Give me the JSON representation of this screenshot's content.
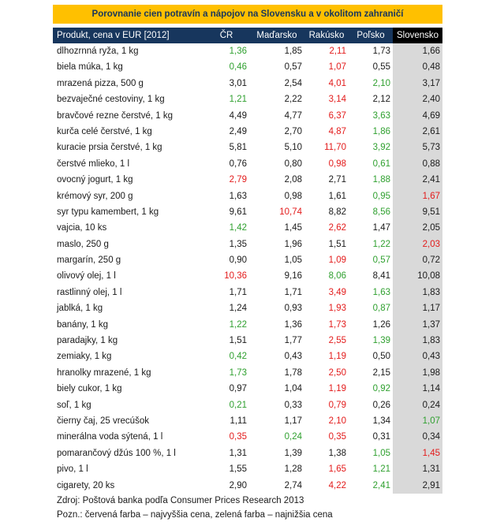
{
  "title": "Porovnanie cien potravín a nápojov na Slovensku a v okolitom zahraničí",
  "header": {
    "product": "Produkt, cena v EUR [2012]",
    "cz": "ČR",
    "hu": "Maďarsko",
    "at": "Rakúsko",
    "pl": "Poľsko",
    "sk": "Slovensko"
  },
  "colors": {
    "highest": "#e31b1b",
    "lowest": "#2fa02f",
    "title_bg": "#ffc000",
    "header_bg": "#17365d"
  },
  "rows": [
    {
      "name": "dlhozrnná ryža, 1 kg",
      "cz": "1,36",
      "hu": "1,85",
      "at": "2,11",
      "pl": "1,73",
      "sk": "1,66",
      "hi": "at",
      "lo": "cz"
    },
    {
      "name": "biela múka, 1 kg",
      "cz": "0,46",
      "hu": "0,57",
      "at": "1,07",
      "pl": "0,55",
      "sk": "0,48",
      "hi": "at",
      "lo": "cz"
    },
    {
      "name": "mrazená pizza, 500 g",
      "cz": "3,01",
      "hu": "2,54",
      "at": "4,01",
      "pl": "2,10",
      "sk": "3,17",
      "hi": "at",
      "lo": "pl"
    },
    {
      "name": "bezvaječné cestoviny, 1 kg",
      "cz": "1,21",
      "hu": "2,22",
      "at": "3,14",
      "pl": "2,12",
      "sk": "2,40",
      "hi": "at",
      "lo": "cz"
    },
    {
      "name": "bravčové rezne čerstvé, 1 kg",
      "cz": "4,49",
      "hu": "4,77",
      "at": "6,37",
      "pl": "3,63",
      "sk": "4,69",
      "hi": "at",
      "lo": "pl"
    },
    {
      "name": "kurča celé čerstvé, 1 kg",
      "cz": "2,49",
      "hu": "2,70",
      "at": "4,87",
      "pl": "1,86",
      "sk": "2,61",
      "hi": "at",
      "lo": "pl"
    },
    {
      "name": "kuracie prsia čerstvé, 1 kg",
      "cz": "5,81",
      "hu": "5,10",
      "at": "11,70",
      "pl": "3,92",
      "sk": "5,73",
      "hi": "at",
      "lo": "pl"
    },
    {
      "name": "čerstvé mlieko, 1 l",
      "cz": "0,76",
      "hu": "0,80",
      "at": "0,98",
      "pl": "0,61",
      "sk": "0,88",
      "hi": "at",
      "lo": "pl"
    },
    {
      "name": "ovocný jogurt, 1 kg",
      "cz": "2,79",
      "hu": "2,08",
      "at": "2,71",
      "pl": "1,88",
      "sk": "2,41",
      "hi": "cz",
      "lo": "pl"
    },
    {
      "name": "krémový syr, 200 g",
      "cz": "1,63",
      "hu": "0,98",
      "at": "1,61",
      "pl": "0,95",
      "sk": "1,67",
      "hi": "sk",
      "lo": "pl"
    },
    {
      "name": "syr typu kamembert, 1 kg",
      "cz": "9,61",
      "hu": "10,74",
      "at": "8,82",
      "pl": "8,56",
      "sk": "9,51",
      "hi": "hu",
      "lo": "pl"
    },
    {
      "name": "vajcia, 10 ks",
      "cz": "1,42",
      "hu": "1,45",
      "at": "2,62",
      "pl": "1,47",
      "sk": "2,05",
      "hi": "at",
      "lo": "cz"
    },
    {
      "name": "maslo, 250 g",
      "cz": "1,35",
      "hu": "1,96",
      "at": "1,51",
      "pl": "1,22",
      "sk": "2,03",
      "hi": "sk",
      "lo": "pl"
    },
    {
      "name": "margarín, 250 g",
      "cz": "0,90",
      "hu": "1,05",
      "at": "1,09",
      "pl": "0,57",
      "sk": "0,72",
      "hi": "at",
      "lo": "pl"
    },
    {
      "name": "olivový olej, 1 l",
      "cz": "10,36",
      "hu": "9,16",
      "at": "8,06",
      "pl": "8,41",
      "sk": "10,08",
      "hi": "cz",
      "lo": "at"
    },
    {
      "name": "rastlinný olej, 1 l",
      "cz": "1,71",
      "hu": "1,71",
      "at": "3,49",
      "pl": "1,63",
      "sk": "1,83",
      "hi": "at",
      "lo": "pl"
    },
    {
      "name": "jablká, 1 kg",
      "cz": "1,24",
      "hu": "0,93",
      "at": "1,93",
      "pl": "0,87",
      "sk": "1,17",
      "hi": "at",
      "lo": "pl"
    },
    {
      "name": "banány, 1 kg",
      "cz": "1,22",
      "hu": "1,36",
      "at": "1,73",
      "pl": "1,26",
      "sk": "1,37",
      "hi": "at",
      "lo": "cz"
    },
    {
      "name": "paradajky, 1 kg",
      "cz": "1,51",
      "hu": "1,77",
      "at": "2,55",
      "pl": "1,39",
      "sk": "1,83",
      "hi": "at",
      "lo": "pl"
    },
    {
      "name": "zemiaky, 1 kg",
      "cz": "0,42",
      "hu": "0,43",
      "at": "1,19",
      "pl": "0,50",
      "sk": "0,43",
      "hi": "at",
      "lo": "cz"
    },
    {
      "name": "hranolky mrazené, 1 kg",
      "cz": "1,73",
      "hu": "1,78",
      "at": "2,50",
      "pl": "2,15",
      "sk": "1,98",
      "hi": "at",
      "lo": "cz"
    },
    {
      "name": "biely cukor, 1 kg",
      "cz": "0,97",
      "hu": "1,04",
      "at": "1,19",
      "pl": "0,92",
      "sk": "1,14",
      "hi": "at",
      "lo": "pl"
    },
    {
      "name": "soľ, 1 kg",
      "cz": "0,21",
      "hu": "0,33",
      "at": "0,79",
      "pl": "0,26",
      "sk": "0,24",
      "hi": "at",
      "lo": "cz"
    },
    {
      "name": "čierny čaj, 25 vrecúšok",
      "cz": "1,11",
      "hu": "1,17",
      "at": "2,10",
      "pl": "1,34",
      "sk": "1,07",
      "hi": "at",
      "lo": "sk"
    },
    {
      "name": "minerálna voda sýtená, 1 l",
      "cz": "0,35",
      "hu": "0,24",
      "at": "0,35",
      "pl": "0,31",
      "sk": "0,34",
      "hi": "cz",
      "lo": "hu",
      "hi2": "at"
    },
    {
      "name": "pomarančový džús 100 %, 1 l",
      "cz": "1,31",
      "hu": "1,39",
      "at": "1,38",
      "pl": "1,05",
      "sk": "1,45",
      "hi": "sk",
      "lo": "pl"
    },
    {
      "name": "pivo, 1 l",
      "cz": "1,55",
      "hu": "1,28",
      "at": "1,65",
      "pl": "1,21",
      "sk": "1,31",
      "hi": "at",
      "lo": "pl"
    },
    {
      "name": "cigarety, 20 ks",
      "cz": "2,90",
      "hu": "2,74",
      "at": "4,22",
      "pl": "2,41",
      "sk": "2,91",
      "hi": "at",
      "lo": "pl"
    }
  ],
  "notes": {
    "source": "Zdroj: Poštová banka podľa Consumer Prices Research 2013",
    "legend": "Pozn.: červená farba – najvyššia cena, zelená farba – najnižšia cena"
  }
}
